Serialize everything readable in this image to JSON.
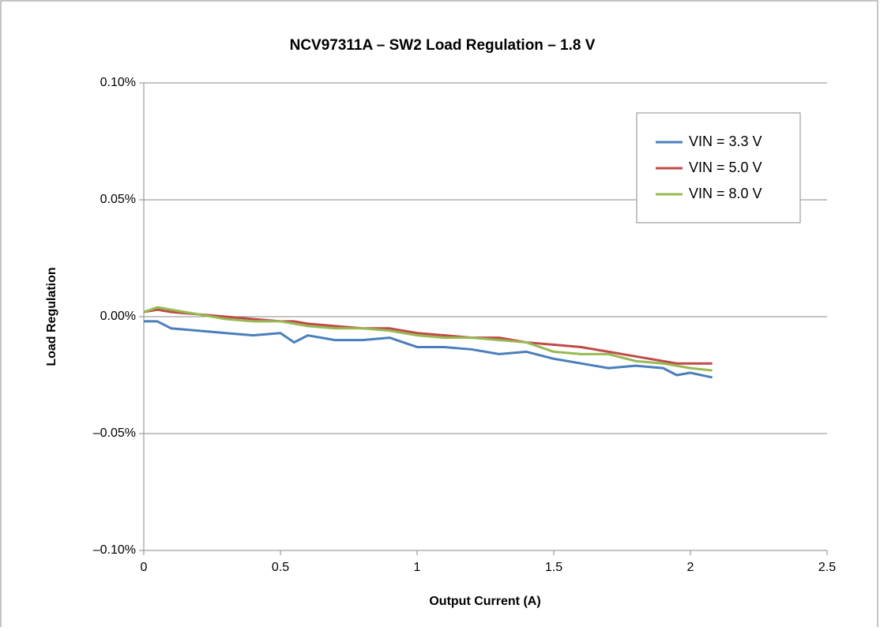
{
  "chart_data": {
    "type": "line",
    "title": "NCV97311A – SW2 Load Regulation – 1.8 V",
    "x_label": "Output Current (A)",
    "y_label": "Load Regulation",
    "x": [
      0,
      0.05,
      0.1,
      0.2,
      0.3,
      0.4,
      0.5,
      0.55,
      0.6,
      0.7,
      0.8,
      0.9,
      1.0,
      1.1,
      1.2,
      1.3,
      1.4,
      1.5,
      1.6,
      1.7,
      1.8,
      1.9,
      1.95,
      2.0,
      2.08
    ],
    "series": [
      {
        "name": "VIN = 3.3 V",
        "color": "#4a7ebb",
        "values": [
          -0.002,
          -0.002,
          -0.005,
          -0.006,
          -0.007,
          -0.008,
          -0.007,
          -0.011,
          -0.008,
          -0.01,
          -0.01,
          -0.009,
          -0.013,
          -0.013,
          -0.014,
          -0.016,
          -0.015,
          -0.018,
          -0.02,
          -0.022,
          -0.021,
          -0.022,
          -0.025,
          -0.024,
          -0.026
        ]
      },
      {
        "name": "VIN = 5.0 V",
        "color": "#be4b48",
        "values": [
          0.002,
          0.003,
          0.002,
          0.001,
          0.0,
          -0.001,
          -0.002,
          -0.002,
          -0.003,
          -0.004,
          -0.005,
          -0.005,
          -0.007,
          -0.008,
          -0.009,
          -0.009,
          -0.011,
          -0.012,
          -0.013,
          -0.015,
          -0.017,
          -0.019,
          -0.02,
          -0.02,
          -0.02
        ]
      },
      {
        "name": "VIN = 8.0 V",
        "color": "#98b954",
        "values": [
          0.002,
          0.004,
          0.003,
          0.001,
          -0.001,
          -0.002,
          -0.002,
          -0.003,
          -0.004,
          -0.005,
          -0.005,
          -0.006,
          -0.008,
          -0.009,
          -0.009,
          -0.01,
          -0.011,
          -0.015,
          -0.016,
          -0.016,
          -0.019,
          -0.02,
          -0.021,
          -0.022,
          -0.023
        ]
      }
    ],
    "xlim": [
      0,
      2.5
    ],
    "xticks": [
      0,
      0.5,
      1,
      1.5,
      2,
      2.5
    ],
    "ylim": [
      -0.1,
      0.1
    ],
    "yticks": [
      {
        "value": -0.1,
        "label": "–0.10%"
      },
      {
        "value": -0.05,
        "label": "–0.05%"
      },
      {
        "value": 0,
        "label": "0.00%"
      },
      {
        "value": 0.05,
        "label": "0.05%"
      },
      {
        "value": 0.1,
        "label": "0.10%"
      }
    ],
    "grid": true,
    "legend": "upper right"
  }
}
